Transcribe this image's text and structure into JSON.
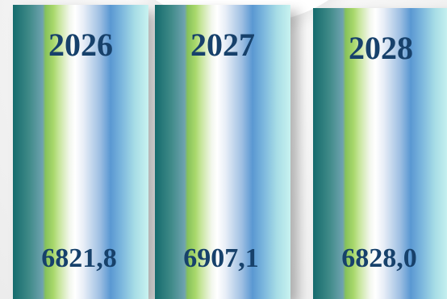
{
  "chart_data": {
    "type": "bar",
    "categories": [
      "2026",
      "2027",
      "2028"
    ],
    "values": [
      "6821,8",
      "6907,1",
      "6828,0"
    ],
    "numeric_values": [
      6821.8,
      6907.1,
      6828.0
    ],
    "title": "",
    "xlabel": "",
    "ylabel": "",
    "grid": false,
    "legend": "none",
    "colors": {
      "text": "#17416b",
      "bar_gradient": [
        "#156b6d",
        "#86c25a",
        "#ffffff",
        "#5a98d2",
        "#c8f2f0"
      ]
    }
  }
}
